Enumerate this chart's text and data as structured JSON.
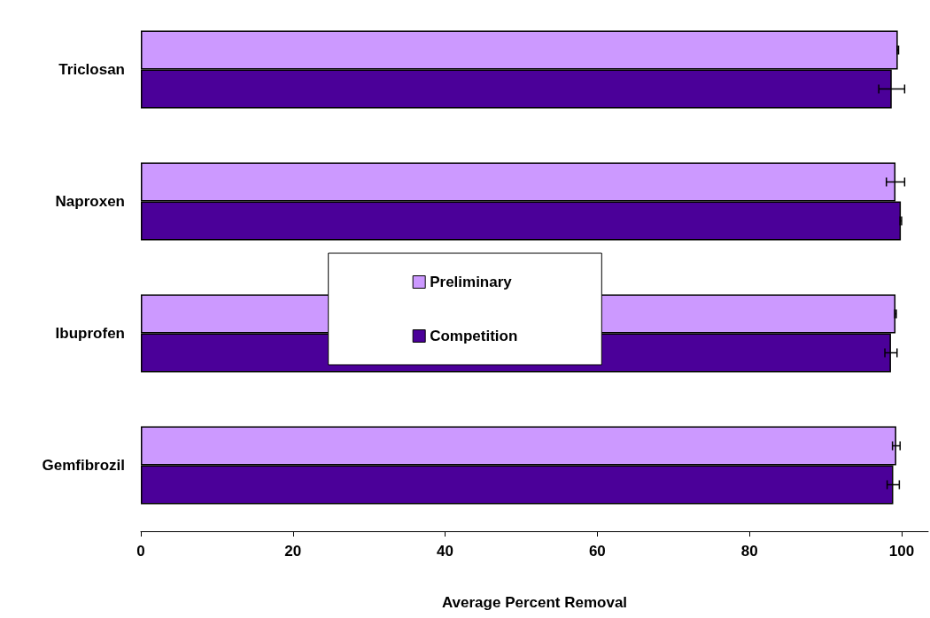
{
  "chart_data": {
    "type": "bar",
    "orientation": "horizontal",
    "xlabel": "Average Percent Removal",
    "categories": [
      "Triclosan",
      "Naproxen",
      "Ibuprofen",
      "Gemfibrozil"
    ],
    "series": [
      {
        "name": "Preliminary",
        "color": "#cc99ff",
        "values": [
          99.5,
          99.2,
          99.2,
          99.3
        ],
        "errors": [
          0.1,
          1.2,
          0.1,
          0.5
        ]
      },
      {
        "name": "Competition",
        "color": "#4b0099",
        "values": [
          98.7,
          99.9,
          98.6,
          98.9
        ],
        "errors": [
          1.7,
          0.1,
          0.8,
          0.8
        ]
      }
    ],
    "xlim": [
      0,
      103.5
    ],
    "xticks": [
      0,
      20,
      40,
      60,
      80,
      100
    ],
    "grid": false,
    "legend": "center"
  }
}
